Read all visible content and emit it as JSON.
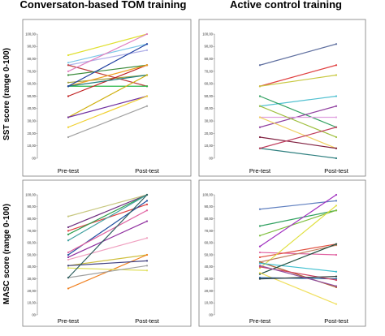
{
  "figure": {
    "col_titles": [
      "Conversaton-based TOM training",
      "Active control training"
    ],
    "row_labels": [
      "SST score (range 0-100)",
      "MASC score (range 0-100)"
    ]
  },
  "chart_data": [
    {
      "type": "line",
      "panel": "top-left",
      "title": "",
      "ylabel": "SST score (range 0-100)",
      "categories": [
        "Pre-test",
        "Post-test"
      ],
      "ylim": [
        0,
        100
      ],
      "yticks": [
        "00",
        "10,00",
        "20,00",
        "30,00",
        "40,00",
        "50,00",
        "60,00",
        "70,00",
        "80,00",
        "90,00",
        "100,00"
      ],
      "series": [
        {
          "color": "#e0e030",
          "values": [
            83,
            100
          ]
        },
        {
          "color": "#80c8e8",
          "values": [
            77,
            92
          ]
        },
        {
          "color": "#b0b0e8",
          "values": [
            75,
            87
          ]
        },
        {
          "color": "#c04040",
          "values": [
            75,
            58
          ]
        },
        {
          "color": "#3a8a3a",
          "values": [
            67,
            75
          ]
        },
        {
          "color": "#e080c0",
          "values": [
            70,
            100
          ]
        },
        {
          "color": "#a0a040",
          "values": [
            61,
            67
          ]
        },
        {
          "color": "#28b848",
          "values": [
            58,
            58
          ]
        },
        {
          "color": "#c02020",
          "values": [
            50,
            75
          ]
        },
        {
          "color": "#f0a020",
          "values": [
            58,
            75
          ]
        },
        {
          "color": "#208080",
          "values": [
            58,
            67
          ]
        },
        {
          "color": "#d0b010",
          "values": [
            33,
            67
          ]
        },
        {
          "color": "#7030a0",
          "values": [
            33,
            50
          ]
        },
        {
          "color": "#f0d030",
          "values": [
            25,
            50
          ]
        },
        {
          "color": "#a0a0a0",
          "values": [
            17,
            42
          ]
        },
        {
          "color": "#2040a0",
          "values": [
            58,
            92
          ]
        }
      ]
    },
    {
      "type": "line",
      "panel": "top-right",
      "title": "",
      "ylabel": "",
      "categories": [
        "Pre-test",
        "Post-test"
      ],
      "ylim": [
        0,
        100
      ],
      "yticks": [
        "00",
        "10,00",
        "20,00",
        "30,00",
        "40,00",
        "50,00",
        "60,00",
        "70,00",
        "80,00",
        "90,00",
        "100,00"
      ],
      "series": [
        {
          "color": "#6070a0",
          "values": [
            75,
            92
          ]
        },
        {
          "color": "#e04040",
          "values": [
            58,
            75
          ]
        },
        {
          "color": "#c8c840",
          "values": [
            58,
            67
          ]
        },
        {
          "color": "#50c0d0",
          "values": [
            42,
            50
          ]
        },
        {
          "color": "#30a060",
          "values": [
            50,
            25
          ]
        },
        {
          "color": "#9040a0",
          "values": [
            25,
            42
          ]
        },
        {
          "color": "#e0a0e0",
          "values": [
            33,
            33
          ]
        },
        {
          "color": "#f0d060",
          "values": [
            33,
            8
          ]
        },
        {
          "color": "#a0c040",
          "values": [
            42,
            17
          ]
        },
        {
          "color": "#802040",
          "values": [
            17,
            8
          ]
        },
        {
          "color": "#308080",
          "values": [
            8,
            0
          ]
        },
        {
          "color": "#c04060",
          "values": [
            8,
            25
          ]
        }
      ]
    },
    {
      "type": "line",
      "panel": "bottom-left",
      "title": "",
      "ylabel": "MASC score (range 0-100)",
      "categories": [
        "Pre-test",
        "Post-test"
      ],
      "ylim": [
        0,
        100
      ],
      "yticks": [
        "00",
        "10,00",
        "20,00",
        "30,00",
        "40,00",
        "50,00",
        "60,00",
        "70,00",
        "80,00",
        "90,00",
        "100,00"
      ],
      "series": [
        {
          "color": "#c8c880",
          "values": [
            82,
            100
          ]
        },
        {
          "color": "#703080",
          "values": [
            73,
            100
          ]
        },
        {
          "color": "#e04040",
          "values": [
            70,
            92
          ]
        },
        {
          "color": "#30a050",
          "values": [
            67,
            100
          ]
        },
        {
          "color": "#40a0a0",
          "values": [
            62,
            100
          ]
        },
        {
          "color": "#2050a0",
          "values": [
            50,
            95
          ]
        },
        {
          "color": "#e060a0",
          "values": [
            52,
            87
          ]
        },
        {
          "color": "#9030a0",
          "values": [
            48,
            78
          ]
        },
        {
          "color": "#f0a0c0",
          "values": [
            46,
            64
          ]
        },
        {
          "color": "#d0c040",
          "values": [
            41,
            50
          ]
        },
        {
          "color": "#f08020",
          "values": [
            22,
            50
          ]
        },
        {
          "color": "#e0e060",
          "values": [
            39,
            37
          ]
        },
        {
          "color": "#404080",
          "values": [
            41,
            45
          ]
        },
        {
          "color": "#a0a0a0",
          "values": [
            31,
            41
          ]
        },
        {
          "color": "#306060",
          "values": [
            31,
            100
          ]
        }
      ]
    },
    {
      "type": "line",
      "panel": "bottom-right",
      "title": "",
      "ylabel": "",
      "categories": [
        "Pre-test",
        "Post-test"
      ],
      "ylim": [
        0,
        100
      ],
      "yticks": [
        "00",
        "10,00",
        "20,00",
        "30,00",
        "40,00",
        "50,00",
        "60,00",
        "70,00",
        "80,00",
        "90,00",
        "100,00"
      ],
      "series": [
        {
          "color": "#6080c0",
          "values": [
            88,
            95
          ]
        },
        {
          "color": "#30a060",
          "values": [
            74,
            87
          ]
        },
        {
          "color": "#80c040",
          "values": [
            66,
            87
          ]
        },
        {
          "color": "#a030c0",
          "values": [
            57,
            100
          ]
        },
        {
          "color": "#e060a0",
          "values": [
            52,
            50
          ]
        },
        {
          "color": "#e05040",
          "values": [
            48,
            59
          ]
        },
        {
          "color": "#e0e040",
          "values": [
            39,
            91
          ]
        },
        {
          "color": "#c08060",
          "values": [
            44,
            58
          ]
        },
        {
          "color": "#b06030",
          "values": [
            44,
            23
          ]
        },
        {
          "color": "#40c0d0",
          "values": [
            43,
            36
          ]
        },
        {
          "color": "#205040",
          "values": [
            34,
            59
          ]
        },
        {
          "color": "#f0e060",
          "values": [
            35,
            9
          ]
        },
        {
          "color": "#2060a0",
          "values": [
            31,
            30
          ]
        },
        {
          "color": "#d04060",
          "values": [
            40,
            29
          ]
        },
        {
          "color": "#304040",
          "values": [
            30,
            32
          ]
        },
        {
          "color": "#9050a0",
          "values": [
            41,
            24
          ]
        }
      ]
    }
  ]
}
